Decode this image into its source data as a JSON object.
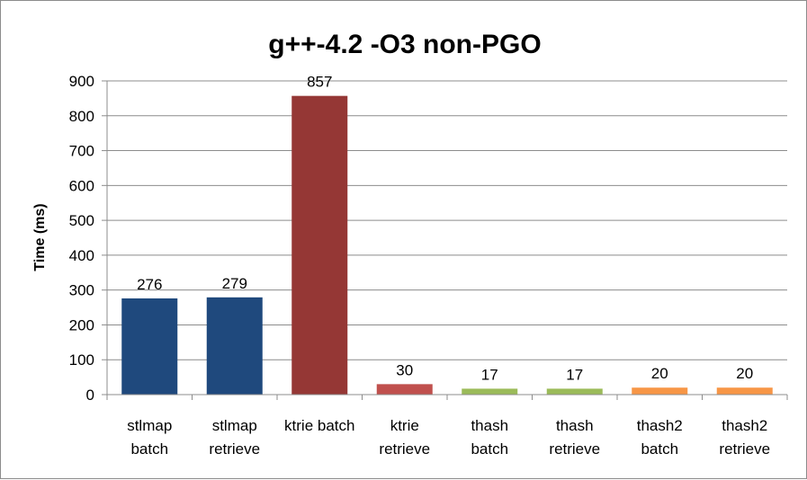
{
  "chart_data": {
    "type": "bar",
    "title": "g++-4.2 -O3 non-PGO",
    "xlabel": "",
    "ylabel": "Time (ms)",
    "ylim": [
      0,
      900
    ],
    "yticks": [
      0,
      100,
      200,
      300,
      400,
      500,
      600,
      700,
      800,
      900
    ],
    "grid": true,
    "legend": "none",
    "categories": [
      [
        "stlmap",
        "batch"
      ],
      [
        "stlmap",
        "retrieve"
      ],
      [
        "ktrie batch"
      ],
      [
        "ktrie",
        "retrieve"
      ],
      [
        "thash",
        "batch"
      ],
      [
        "thash",
        "retrieve"
      ],
      [
        "thash2",
        "batch"
      ],
      [
        "thash2",
        "retrieve"
      ]
    ],
    "values": [
      276,
      279,
      857,
      30,
      17,
      17,
      20,
      20
    ],
    "data_labels": [
      "276",
      "279",
      "857",
      "30",
      "17",
      "17",
      "20",
      "20"
    ],
    "colors": [
      "#1f497d",
      "#1f497d",
      "#953735",
      "#c0504d",
      "#9bbb59",
      "#9bbb59",
      "#f79646",
      "#f79646"
    ]
  }
}
